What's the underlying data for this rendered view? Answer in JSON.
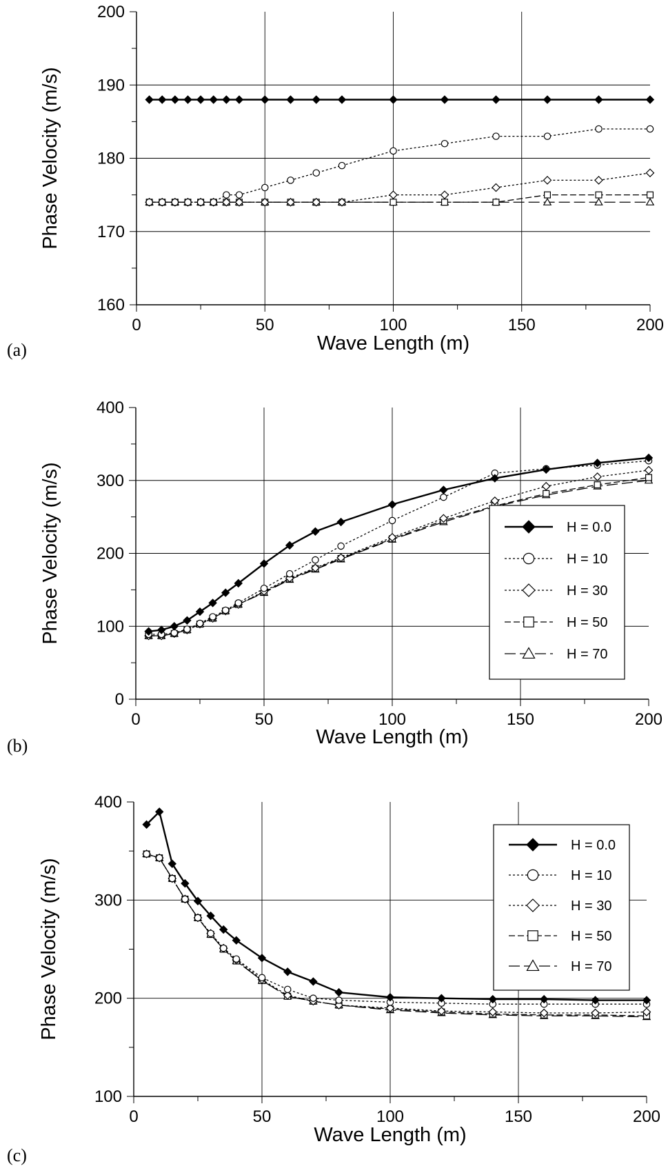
{
  "chart_data": [
    {
      "type": "line",
      "panel_label": "(a)",
      "xlabel": "Wave Length (m)",
      "ylabel": "Phase Velocity (m/s)",
      "xlim": [
        0,
        200
      ],
      "ylim": [
        160,
        200
      ],
      "x_ticks": [
        0,
        50,
        100,
        150,
        200
      ],
      "y_ticks": [
        160,
        170,
        180,
        190,
        200
      ],
      "grid": true,
      "legend": false,
      "series": [
        {
          "marker": "diamond-filled",
          "line": "solid",
          "x": [
            5,
            10,
            15,
            20,
            25,
            30,
            35,
            40,
            50,
            60,
            70,
            80,
            100,
            120,
            140,
            160,
            180,
            200
          ],
          "y": [
            188,
            188,
            188,
            188,
            188,
            188,
            188,
            188,
            188,
            188,
            188,
            188,
            188,
            188,
            188,
            188,
            188,
            188
          ]
        },
        {
          "marker": "circle",
          "line": "dotted",
          "x": [
            5,
            10,
            15,
            20,
            25,
            30,
            35,
            40,
            50,
            60,
            70,
            80,
            100,
            120,
            140,
            160,
            180,
            200
          ],
          "y": [
            174,
            174,
            174,
            174,
            174,
            174,
            175,
            175,
            176,
            177,
            178,
            179,
            181,
            182,
            183,
            183,
            184,
            184
          ]
        },
        {
          "marker": "diamond",
          "line": "dotted",
          "x": [
            5,
            10,
            15,
            20,
            25,
            30,
            35,
            40,
            50,
            60,
            70,
            80,
            100,
            120,
            140,
            160,
            180,
            200
          ],
          "y": [
            174,
            174,
            174,
            174,
            174,
            174,
            174,
            174,
            174,
            174,
            174,
            174,
            175,
            175,
            176,
            177,
            177,
            178
          ]
        },
        {
          "marker": "square",
          "line": "dashed",
          "x": [
            5,
            10,
            15,
            20,
            25,
            30,
            35,
            40,
            50,
            60,
            70,
            80,
            100,
            120,
            140,
            160,
            180,
            200
          ],
          "y": [
            174,
            174,
            174,
            174,
            174,
            174,
            174,
            174,
            174,
            174,
            174,
            174,
            174,
            174,
            174,
            175,
            175,
            175
          ]
        },
        {
          "marker": "triangle",
          "line": "longdash",
          "x": [
            5,
            10,
            15,
            20,
            25,
            30,
            35,
            40,
            50,
            60,
            70,
            80,
            100,
            120,
            140,
            160,
            180,
            200
          ],
          "y": [
            174,
            174,
            174,
            174,
            174,
            174,
            174,
            174,
            174,
            174,
            174,
            174,
            174,
            174,
            174,
            174,
            174,
            174
          ]
        }
      ]
    },
    {
      "type": "line",
      "panel_label": "(b)",
      "xlabel": "Wave Length (m)",
      "ylabel": "Phase Velocity (m/s)",
      "xlim": [
        0,
        200
      ],
      "ylim": [
        0,
        400
      ],
      "x_ticks": [
        0,
        50,
        100,
        150,
        200
      ],
      "y_ticks": [
        0,
        100,
        200,
        300,
        400
      ],
      "grid": true,
      "legend": true,
      "legend_placement": "right",
      "series": [
        {
          "name": "H = 0.0",
          "marker": "diamond-filled",
          "line": "solid",
          "x": [
            5,
            10,
            15,
            20,
            25,
            30,
            35,
            40,
            50,
            60,
            70,
            80,
            100,
            120,
            140,
            160,
            180,
            200
          ],
          "y": [
            93,
            95,
            100,
            108,
            120,
            132,
            146,
            159,
            186,
            211,
            230,
            243,
            267,
            287,
            303,
            315,
            324,
            331
          ]
        },
        {
          "name": "H = 10",
          "marker": "circle",
          "line": "dotted",
          "x": [
            5,
            10,
            15,
            20,
            25,
            30,
            35,
            40,
            50,
            60,
            70,
            80,
            100,
            120,
            140,
            160,
            180,
            200
          ],
          "y": [
            89,
            89,
            91,
            96,
            104,
            113,
            122,
            132,
            152,
            172,
            191,
            210,
            245,
            277,
            310,
            316,
            321,
            327
          ]
        },
        {
          "name": "H = 30",
          "marker": "diamond",
          "line": "dotted",
          "x": [
            5,
            10,
            15,
            20,
            25,
            30,
            35,
            40,
            50,
            60,
            70,
            80,
            100,
            120,
            140,
            160,
            180,
            200
          ],
          "y": [
            87,
            87,
            90,
            95,
            103,
            111,
            121,
            130,
            148,
            166,
            180,
            194,
            222,
            248,
            272,
            292,
            305,
            314
          ]
        },
        {
          "name": "H = 50",
          "marker": "square",
          "line": "dashed",
          "x": [
            5,
            10,
            15,
            20,
            25,
            30,
            35,
            40,
            50,
            60,
            70,
            80,
            100,
            120,
            140,
            160,
            180,
            200
          ],
          "y": [
            87,
            87,
            90,
            95,
            103,
            111,
            121,
            130,
            147,
            165,
            179,
            193,
            220,
            245,
            265,
            282,
            294,
            304
          ]
        },
        {
          "name": "H = 70",
          "marker": "triangle",
          "line": "longdash",
          "x": [
            5,
            10,
            15,
            20,
            25,
            30,
            35,
            40,
            50,
            60,
            70,
            80,
            100,
            120,
            140,
            160,
            180,
            200
          ],
          "y": [
            87,
            87,
            90,
            95,
            103,
            111,
            121,
            130,
            146,
            164,
            178,
            192,
            219,
            243,
            264,
            280,
            292,
            300
          ]
        }
      ]
    },
    {
      "type": "line",
      "panel_label": "(c)",
      "xlabel": "Wave Length (m)",
      "ylabel": "Phase Velocity (m/s)",
      "xlim": [
        0,
        200
      ],
      "ylim": [
        100,
        400
      ],
      "x_ticks": [
        0,
        50,
        100,
        150,
        200
      ],
      "y_ticks": [
        100,
        200,
        300,
        400
      ],
      "grid": true,
      "legend": true,
      "legend_placement": "top-right",
      "series": [
        {
          "name": "H = 0.0",
          "marker": "diamond-filled",
          "line": "solid",
          "x": [
            5,
            10,
            15,
            20,
            25,
            30,
            35,
            40,
            50,
            60,
            70,
            80,
            100,
            120,
            140,
            160,
            180,
            200
          ],
          "y": [
            377,
            390,
            337,
            317,
            299,
            284,
            270,
            259,
            241,
            227,
            217,
            206,
            201,
            200,
            199,
            199,
            198,
            198
          ]
        },
        {
          "name": "H = 10",
          "marker": "circle",
          "line": "dotted",
          "x": [
            5,
            10,
            15,
            20,
            25,
            30,
            35,
            40,
            50,
            60,
            70,
            80,
            100,
            120,
            140,
            160,
            180,
            200
          ],
          "y": [
            347,
            343,
            322,
            301,
            282,
            266,
            251,
            240,
            221,
            209,
            200,
            198,
            196,
            195,
            194,
            194,
            194,
            194
          ]
        },
        {
          "name": "H = 30",
          "marker": "diamond",
          "line": "dotted",
          "x": [
            5,
            10,
            15,
            20,
            25,
            30,
            35,
            40,
            50,
            60,
            70,
            80,
            100,
            120,
            140,
            160,
            180,
            200
          ],
          "y": [
            347,
            343,
            322,
            301,
            282,
            266,
            251,
            239,
            219,
            203,
            197,
            193,
            190,
            187,
            186,
            185,
            185,
            186
          ]
        },
        {
          "name": "H = 50",
          "marker": "square",
          "line": "dashed",
          "x": [
            5,
            10,
            15,
            20,
            25,
            30,
            35,
            40,
            50,
            60,
            70,
            80,
            100,
            120,
            140,
            160,
            180,
            200
          ],
          "y": [
            347,
            343,
            322,
            301,
            282,
            265,
            250,
            238,
            218,
            202,
            197,
            193,
            189,
            186,
            184,
            183,
            183,
            182
          ]
        },
        {
          "name": "H = 70",
          "marker": "triangle",
          "line": "longdash",
          "x": [
            5,
            10,
            15,
            20,
            25,
            30,
            35,
            40,
            50,
            60,
            70,
            80,
            100,
            120,
            140,
            160,
            180,
            200
          ],
          "y": [
            347,
            343,
            322,
            301,
            282,
            265,
            250,
            238,
            218,
            202,
            197,
            193,
            188,
            185,
            183,
            182,
            182,
            181
          ]
        }
      ]
    }
  ]
}
